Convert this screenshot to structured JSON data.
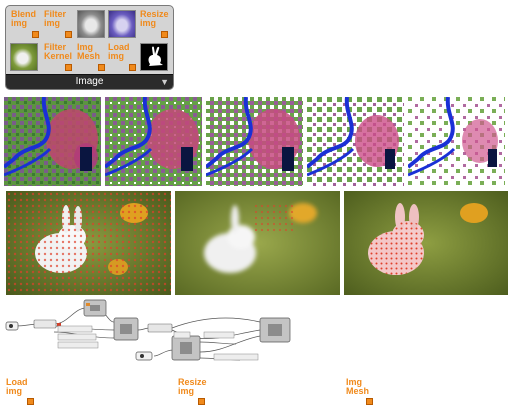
{
  "panel": {
    "title": "Image",
    "tools": [
      {
        "label": "Blend\nimg"
      },
      {
        "label": "Filter\nimg"
      },
      {
        "label": "Resize\nimg"
      },
      {
        "label": "Filter\nKernel"
      },
      {
        "label": "Img\nMesh"
      },
      {
        "label": "Load\nimg"
      }
    ],
    "expand_icon": "expand-arrow-icon"
  },
  "bottom_labels": [
    {
      "line1": "Load",
      "line2": "img"
    },
    {
      "line1": "Resize",
      "line2": "img"
    },
    {
      "line1": "Img",
      "line2": "Mesh"
    }
  ],
  "colors": {
    "accent": "#f08a1c",
    "panel_bg": "#d4d4d4",
    "panel_title_bg": "#2b2b2b"
  }
}
